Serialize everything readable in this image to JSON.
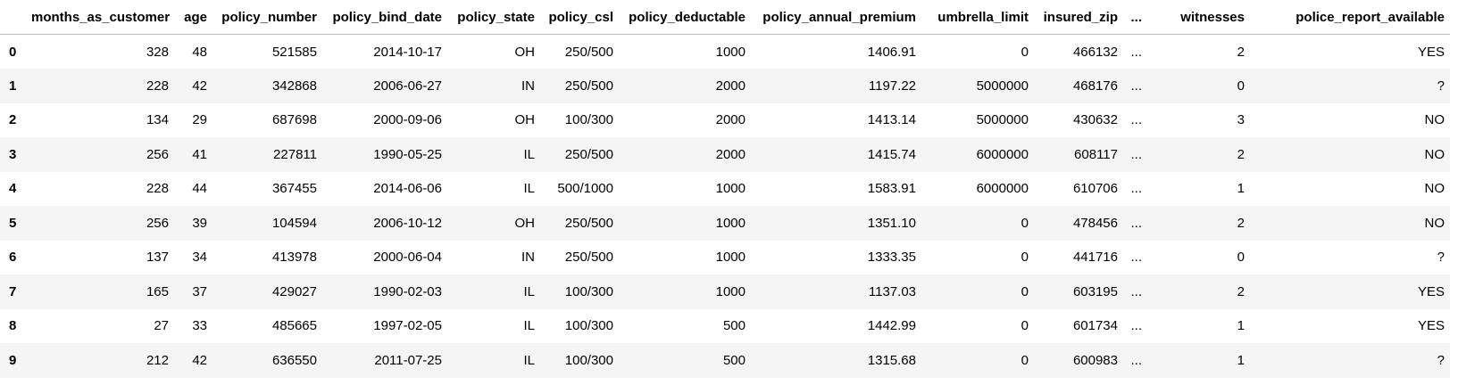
{
  "table": {
    "columns": [
      "",
      "months_as_customer",
      "age",
      "policy_number",
      "policy_bind_date",
      "policy_state",
      "policy_csl",
      "policy_deductable",
      "policy_annual_premium",
      "umbrella_limit",
      "insured_zip",
      "...",
      "witnesses",
      "police_report_available"
    ],
    "rows": [
      {
        "index": "0",
        "cells": [
          "328",
          "48",
          "521585",
          "2014-10-17",
          "OH",
          "250/500",
          "1000",
          "1406.91",
          "0",
          "466132",
          "...",
          "2",
          "YES"
        ]
      },
      {
        "index": "1",
        "cells": [
          "228",
          "42",
          "342868",
          "2006-06-27",
          "IN",
          "250/500",
          "2000",
          "1197.22",
          "5000000",
          "468176",
          "...",
          "0",
          "?"
        ]
      },
      {
        "index": "2",
        "cells": [
          "134",
          "29",
          "687698",
          "2000-09-06",
          "OH",
          "100/300",
          "2000",
          "1413.14",
          "5000000",
          "430632",
          "...",
          "3",
          "NO"
        ]
      },
      {
        "index": "3",
        "cells": [
          "256",
          "41",
          "227811",
          "1990-05-25",
          "IL",
          "250/500",
          "2000",
          "1415.74",
          "6000000",
          "608117",
          "...",
          "2",
          "NO"
        ]
      },
      {
        "index": "4",
        "cells": [
          "228",
          "44",
          "367455",
          "2014-06-06",
          "IL",
          "500/1000",
          "1000",
          "1583.91",
          "6000000",
          "610706",
          "...",
          "1",
          "NO"
        ]
      },
      {
        "index": "5",
        "cells": [
          "256",
          "39",
          "104594",
          "2006-10-12",
          "OH",
          "250/500",
          "1000",
          "1351.10",
          "0",
          "478456",
          "...",
          "2",
          "NO"
        ]
      },
      {
        "index": "6",
        "cells": [
          "137",
          "34",
          "413978",
          "2000-06-04",
          "IN",
          "250/500",
          "1000",
          "1333.35",
          "0",
          "441716",
          "...",
          "0",
          "?"
        ]
      },
      {
        "index": "7",
        "cells": [
          "165",
          "37",
          "429027",
          "1990-02-03",
          "IL",
          "100/300",
          "1000",
          "1137.03",
          "0",
          "603195",
          "...",
          "2",
          "YES"
        ]
      },
      {
        "index": "8",
        "cells": [
          "27",
          "33",
          "485665",
          "1997-02-05",
          "IL",
          "100/300",
          "500",
          "1442.99",
          "0",
          "601734",
          "...",
          "1",
          "YES"
        ]
      },
      {
        "index": "9",
        "cells": [
          "212",
          "42",
          "636550",
          "2011-07-25",
          "IL",
          "100/300",
          "500",
          "1315.68",
          "0",
          "600983",
          "...",
          "1",
          "?"
        ]
      }
    ]
  }
}
